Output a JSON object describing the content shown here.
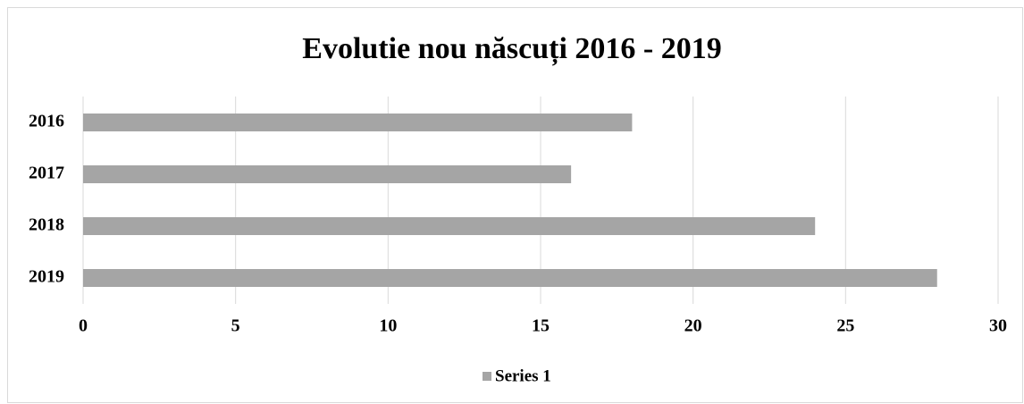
{
  "chart_data": {
    "type": "bar",
    "orientation": "horizontal",
    "title": "Evolutie nou născuți 2016 - 2019",
    "categories": [
      "2016",
      "2017",
      "2018",
      "2019"
    ],
    "series": [
      {
        "name": "Series 1",
        "color": "#a5a5a5",
        "values": [
          18,
          16,
          24,
          28
        ]
      }
    ],
    "xlim": [
      0,
      30
    ],
    "xticks": [
      0,
      5,
      10,
      15,
      20,
      25,
      30
    ],
    "grid": true,
    "legend": "bottom"
  }
}
